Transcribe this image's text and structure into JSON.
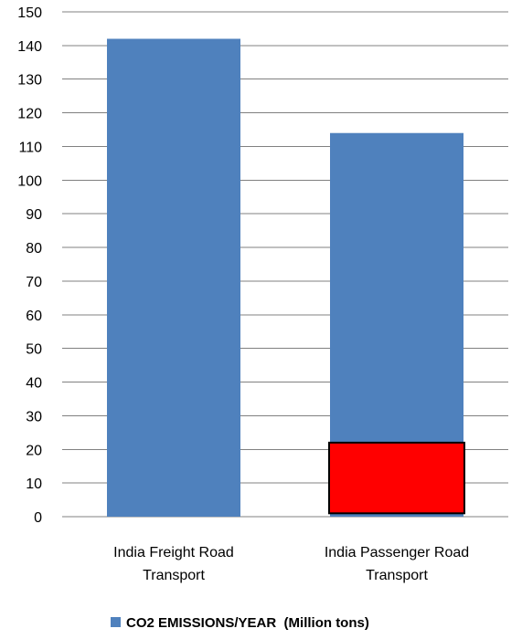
{
  "chart_data": {
    "type": "bar",
    "categories": [
      [
        "India Freight Road",
        "Transport"
      ],
      [
        "India Passenger Road",
        "Transport"
      ]
    ],
    "series": [
      {
        "name": "CO2 EMISSIONS/YEAR  (Million tons)",
        "values": [
          142,
          114
        ],
        "color": "#4F81BD"
      }
    ],
    "overlay": {
      "category_index": 1,
      "from": 1,
      "to": 22,
      "color": "#FF0000",
      "border": "#000000"
    },
    "ylim": [
      0,
      150
    ],
    "yticks": [
      0,
      10,
      20,
      30,
      40,
      50,
      60,
      70,
      80,
      90,
      100,
      110,
      120,
      130,
      140,
      150
    ],
    "grid": true,
    "legend_position": "bottom",
    "title": "",
    "xlabel": "",
    "ylabel": ""
  }
}
